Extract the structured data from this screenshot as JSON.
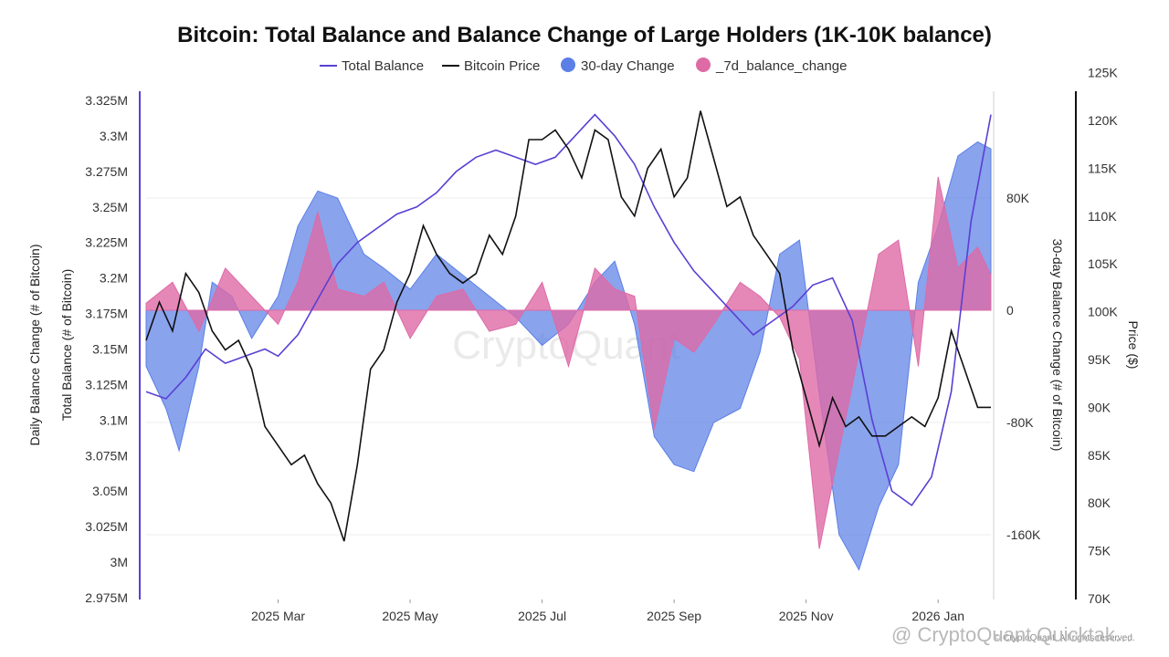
{
  "chart_data": {
    "type": "area",
    "title": "Bitcoin: Total Balance and Balance Change of Large Holders (1K-10K balance)",
    "legend": [
      {
        "label": "Total Balance",
        "color": "#5a3fd4",
        "marker": "line"
      },
      {
        "label": "Bitcoin Price",
        "color": "#111111",
        "marker": "line"
      },
      {
        "label": "30-day Change",
        "color": "#5b7fe6",
        "marker": "circle"
      },
      {
        "label": "_7d_balance_change",
        "color": "#de6aa6",
        "marker": "circle"
      }
    ],
    "left_axis_outer_title": "Daily Balance Change (# of Bitcoin)",
    "left_axis_title": "Total Balance (# of Bitcoin)",
    "right_axis_title": "30-day Balance Change (# of Bitcoin)",
    "price_axis_title": "Price ($)",
    "left_ticks": [
      "3.325M",
      "3.3M",
      "3.275M",
      "3.25M",
      "3.225M",
      "3.2M",
      "3.175M",
      "3.15M",
      "3.125M",
      "3.1M",
      "3.075M",
      "3.05M",
      "3.025M",
      "3M",
      "2.975M"
    ],
    "left_ylim": [
      2975000,
      3325000
    ],
    "change_ticks": [
      "80K",
      "0",
      "-80K",
      "-160K"
    ],
    "change_values": [
      80000,
      0,
      -80000,
      -160000
    ],
    "price_ticks": [
      "125K",
      "120K",
      "115K",
      "110K",
      "105K",
      "100K",
      "95K",
      "90K",
      "85K",
      "80K",
      "75K",
      "70K"
    ],
    "price_values": [
      125000,
      120000,
      115000,
      110000,
      105000,
      100000,
      95000,
      90000,
      85000,
      80000,
      75000,
      70000
    ],
    "x_ticks": [
      "2025 Mar",
      "2025 May",
      "2025 Jul",
      "2025 Sep",
      "2025 Nov",
      "2026 Jan"
    ],
    "x_tick_months": [
      2,
      4,
      6,
      8,
      10,
      12
    ],
    "x_range_months": [
      0.0,
      12.8
    ],
    "series": [
      {
        "name": "30-day Change",
        "axis": "change",
        "x": [
          0,
          0.3,
          0.5,
          0.8,
          1.0,
          1.3,
          1.6,
          2.0,
          2.3,
          2.6,
          2.9,
          3.3,
          3.6,
          4.0,
          4.4,
          4.8,
          5.2,
          5.6,
          6.0,
          6.4,
          6.8,
          7.1,
          7.4,
          7.7,
          8.0,
          8.3,
          8.6,
          9.0,
          9.3,
          9.6,
          9.9,
          10.2,
          10.5,
          10.8,
          11.1,
          11.4,
          11.7,
          12.0,
          12.3,
          12.6,
          12.8
        ],
        "values": [
          -40000,
          -70000,
          -100000,
          -40000,
          20000,
          10000,
          -20000,
          10000,
          60000,
          85000,
          80000,
          40000,
          30000,
          15000,
          40000,
          25000,
          10000,
          -5000,
          -25000,
          -10000,
          20000,
          35000,
          -10000,
          -90000,
          -110000,
          -115000,
          -80000,
          -70000,
          -30000,
          40000,
          50000,
          -60000,
          -160000,
          -185000,
          -140000,
          -110000,
          20000,
          60000,
          110000,
          120000,
          115000
        ]
      },
      {
        "name": "_7d_balance_change",
        "axis": "change",
        "x": [
          0,
          0.4,
          0.8,
          1.2,
          1.6,
          2.0,
          2.3,
          2.6,
          2.9,
          3.3,
          3.6,
          4.0,
          4.4,
          4.8,
          5.2,
          5.6,
          6.0,
          6.4,
          6.8,
          7.1,
          7.4,
          7.7,
          8.0,
          8.3,
          8.6,
          9.0,
          9.3,
          9.6,
          9.9,
          10.2,
          10.5,
          10.8,
          11.1,
          11.4,
          11.7,
          12.0,
          12.3,
          12.6,
          12.8
        ],
        "values": [
          5000,
          20000,
          -15000,
          30000,
          10000,
          -10000,
          20000,
          70000,
          15000,
          10000,
          20000,
          -20000,
          10000,
          15000,
          -15000,
          -10000,
          20000,
          -40000,
          30000,
          15000,
          10000,
          -85000,
          -20000,
          -30000,
          -10000,
          20000,
          10000,
          -5000,
          -35000,
          -170000,
          -100000,
          -30000,
          40000,
          50000,
          -40000,
          95000,
          30000,
          45000,
          25000
        ]
      },
      {
        "name": "Total Balance",
        "axis": "left",
        "x": [
          0,
          0.3,
          0.6,
          0.9,
          1.2,
          1.5,
          1.8,
          2.0,
          2.3,
          2.6,
          2.9,
          3.2,
          3.5,
          3.8,
          4.1,
          4.4,
          4.7,
          5.0,
          5.3,
          5.6,
          5.9,
          6.2,
          6.5,
          6.8,
          7.1,
          7.4,
          7.7,
          8.0,
          8.3,
          8.6,
          8.9,
          9.2,
          9.5,
          9.8,
          10.1,
          10.4,
          10.7,
          11.0,
          11.3,
          11.6,
          11.9,
          12.2,
          12.5,
          12.8
        ],
        "values": [
          3120000,
          3115000,
          3130000,
          3150000,
          3140000,
          3145000,
          3150000,
          3145000,
          3160000,
          3185000,
          3210000,
          3225000,
          3235000,
          3245000,
          3250000,
          3260000,
          3275000,
          3285000,
          3290000,
          3285000,
          3280000,
          3285000,
          3300000,
          3315000,
          3300000,
          3280000,
          3250000,
          3225000,
          3205000,
          3190000,
          3175000,
          3160000,
          3170000,
          3180000,
          3195000,
          3200000,
          3170000,
          3100000,
          3050000,
          3040000,
          3060000,
          3120000,
          3240000,
          3315000
        ]
      },
      {
        "name": "Bitcoin Price",
        "axis": "price",
        "x": [
          0,
          0.2,
          0.4,
          0.6,
          0.8,
          1.0,
          1.2,
          1.4,
          1.6,
          1.8,
          2.0,
          2.2,
          2.4,
          2.6,
          2.8,
          3.0,
          3.2,
          3.4,
          3.6,
          3.8,
          4.0,
          4.2,
          4.4,
          4.6,
          4.8,
          5.0,
          5.2,
          5.4,
          5.6,
          5.8,
          6.0,
          6.2,
          6.4,
          6.6,
          6.8,
          7.0,
          7.2,
          7.4,
          7.6,
          7.8,
          8.0,
          8.2,
          8.4,
          8.6,
          8.8,
          9.0,
          9.2,
          9.4,
          9.6,
          9.8,
          10.0,
          10.2,
          10.4,
          10.6,
          10.8,
          11.0,
          11.2,
          11.4,
          11.6,
          11.8,
          12.0,
          12.2,
          12.4,
          12.6,
          12.8
        ],
        "values": [
          97000,
          101000,
          98000,
          104000,
          102000,
          98000,
          96000,
          97000,
          94000,
          88000,
          86000,
          84000,
          85000,
          82000,
          80000,
          76000,
          84000,
          94000,
          96000,
          101000,
          104000,
          109000,
          106000,
          104000,
          103000,
          104000,
          108000,
          106000,
          110000,
          118000,
          118000,
          119000,
          117000,
          114000,
          119000,
          118000,
          112000,
          110000,
          115000,
          117000,
          112000,
          114000,
          121000,
          116000,
          111000,
          112000,
          108000,
          106000,
          104000,
          96000,
          91000,
          86000,
          91000,
          88000,
          89000,
          87000,
          87000,
          88000,
          89000,
          88000,
          91000,
          98000,
          94000,
          90000,
          90000
        ]
      }
    ],
    "watermark": "CryptoQuant",
    "footer_handle": "@ CryptoQuant Quicktak...",
    "footer_credit": "© CryptoQuant. All rights reserved."
  }
}
